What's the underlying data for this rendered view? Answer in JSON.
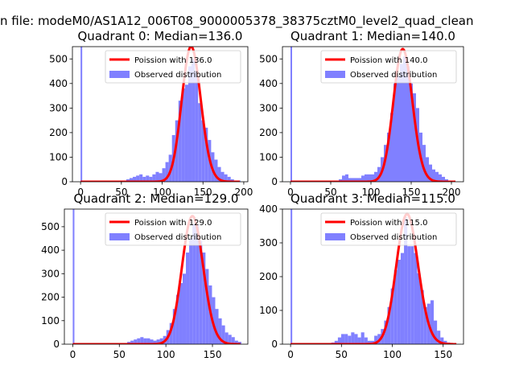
{
  "figure": {
    "suptitle": "n file: modeM0/AS1A12_006T08_9000005378_38375cztM0_level2_quad_clean"
  },
  "colors": {
    "fit_line": "#ff0000",
    "hist_fill": "#8080ff",
    "axes": "#000000"
  },
  "chart_data": [
    {
      "type": "bar",
      "title": "Quadrant 0: Median=136.0",
      "median": 136.0,
      "xlim": [
        -10,
        205
      ],
      "ylim": [
        0,
        550
      ],
      "xticks": [
        0,
        50,
        100,
        150,
        200
      ],
      "yticks": [
        0,
        100,
        200,
        300,
        400,
        500
      ],
      "series": [
        {
          "name": "Poission with 136.0",
          "kind": "poisson_fit",
          "mean": 136.0,
          "peak": 550,
          "x_range": [
            0,
            195
          ]
        },
        {
          "name": "Observed distribution",
          "kind": "histogram",
          "bin_width": 4,
          "bins": [
            [
              0,
              580
            ],
            [
              48,
              5
            ],
            [
              52,
              5
            ],
            [
              56,
              10
            ],
            [
              60,
              15
            ],
            [
              64,
              20
            ],
            [
              68,
              25
            ],
            [
              72,
              30
            ],
            [
              76,
              20
            ],
            [
              80,
              25
            ],
            [
              84,
              20
            ],
            [
              88,
              30
            ],
            [
              92,
              40
            ],
            [
              96,
              35
            ],
            [
              100,
              55
            ],
            [
              104,
              80
            ],
            [
              108,
              110
            ],
            [
              112,
              190
            ],
            [
              116,
              250
            ],
            [
              120,
              330
            ],
            [
              124,
              380
            ],
            [
              128,
              395
            ],
            [
              132,
              470
            ],
            [
              136,
              500
            ],
            [
              140,
              450
            ],
            [
              144,
              320
            ],
            [
              148,
              250
            ],
            [
              152,
              220
            ],
            [
              156,
              170
            ],
            [
              160,
              120
            ],
            [
              164,
              90
            ],
            [
              168,
              60
            ],
            [
              172,
              40
            ],
            [
              176,
              30
            ],
            [
              180,
              20
            ],
            [
              184,
              10
            ],
            [
              188,
              5
            ],
            [
              192,
              5
            ]
          ]
        }
      ],
      "legend": {
        "position": "upper right"
      }
    },
    {
      "type": "bar",
      "title": "Quadrant 1: Median=140.0",
      "median": 140.0,
      "xlim": [
        -10,
        215
      ],
      "ylim": [
        0,
        550
      ],
      "xticks": [
        0,
        50,
        100,
        150,
        200
      ],
      "yticks": [
        0,
        100,
        200,
        300,
        400,
        500
      ],
      "series": [
        {
          "name": "Poission with 140.0",
          "kind": "poisson_fit",
          "mean": 140.0,
          "peak": 540,
          "x_range": [
            0,
            205
          ]
        },
        {
          "name": "Observed distribution",
          "kind": "histogram",
          "bin_width": 4,
          "bins": [
            [
              0,
              580
            ],
            [
              56,
              5
            ],
            [
              60,
              10
            ],
            [
              64,
              25
            ],
            [
              68,
              30
            ],
            [
              72,
              15
            ],
            [
              76,
              15
            ],
            [
              80,
              15
            ],
            [
              84,
              15
            ],
            [
              88,
              25
            ],
            [
              92,
              30
            ],
            [
              96,
              30
            ],
            [
              100,
              30
            ],
            [
              104,
              40
            ],
            [
              108,
              60
            ],
            [
              112,
              100
            ],
            [
              116,
              150
            ],
            [
              120,
              200
            ],
            [
              124,
              280
            ],
            [
              128,
              400
            ],
            [
              132,
              430
            ],
            [
              136,
              480
            ],
            [
              140,
              510
            ],
            [
              144,
              470
            ],
            [
              148,
              400
            ],
            [
              152,
              360
            ],
            [
              156,
              300
            ],
            [
              160,
              200
            ],
            [
              164,
              150
            ],
            [
              168,
              100
            ],
            [
              172,
              70
            ],
            [
              176,
              50
            ],
            [
              180,
              40
            ],
            [
              184,
              30
            ],
            [
              188,
              20
            ],
            [
              192,
              10
            ],
            [
              196,
              5
            ]
          ]
        }
      ],
      "legend": {
        "position": "upper right"
      }
    },
    {
      "type": "bar",
      "title": "Quadrant 2: Median=129.0",
      "median": 129.0,
      "xlim": [
        -9,
        188
      ],
      "ylim": [
        0,
        575
      ],
      "xticks": [
        0,
        50,
        100,
        150
      ],
      "yticks": [
        0,
        100,
        200,
        300,
        400,
        500
      ],
      "series": [
        {
          "name": "Poission with 129.0",
          "kind": "poisson_fit",
          "mean": 129.0,
          "peak": 545,
          "x_range": [
            0,
            180
          ]
        },
        {
          "name": "Observed distribution",
          "kind": "histogram",
          "bin_width": 3.5,
          "bins": [
            [
              0,
              580
            ],
            [
              55,
              5
            ],
            [
              58.5,
              10
            ],
            [
              62,
              15
            ],
            [
              65.5,
              20
            ],
            [
              69,
              25
            ],
            [
              72.5,
              30
            ],
            [
              76,
              25
            ],
            [
              79.5,
              25
            ],
            [
              83,
              20
            ],
            [
              86.5,
              15
            ],
            [
              90,
              20
            ],
            [
              93.5,
              25
            ],
            [
              97,
              35
            ],
            [
              100.5,
              60
            ],
            [
              104,
              90
            ],
            [
              107.5,
              150
            ],
            [
              111,
              210
            ],
            [
              114.5,
              260
            ],
            [
              118,
              300
            ],
            [
              121.5,
              390
            ],
            [
              125,
              450
            ],
            [
              128.5,
              510
            ],
            [
              132,
              510
            ],
            [
              135.5,
              440
            ],
            [
              139,
              390
            ],
            [
              142.5,
              320
            ],
            [
              146,
              250
            ],
            [
              149.5,
              200
            ],
            [
              153,
              150
            ],
            [
              156.5,
              110
            ],
            [
              160,
              80
            ],
            [
              163.5,
              50
            ],
            [
              167,
              40
            ],
            [
              170.5,
              30
            ],
            [
              174,
              15
            ],
            [
              177.5,
              10
            ]
          ]
        }
      ],
      "legend": {
        "position": "upper right"
      }
    },
    {
      "type": "bar",
      "title": "Quadrant 3: Median=115.0",
      "median": 115.0,
      "xlim": [
        -8,
        170
      ],
      "ylim": [
        0,
        400
      ],
      "xticks": [
        0,
        50,
        100,
        150
      ],
      "yticks": [
        0,
        100,
        200,
        300,
        400
      ],
      "series": [
        {
          "name": "Poission with 115.0",
          "kind": "poisson_fit",
          "mean": 115.0,
          "peak": 385,
          "x_range": [
            0,
            163
          ]
        },
        {
          "name": "Observed distribution",
          "kind": "histogram",
          "bin_width": 3.25,
          "bins": [
            [
              0,
              420
            ],
            [
              40,
              5
            ],
            [
              43.25,
              10
            ],
            [
              46.5,
              20
            ],
            [
              49.75,
              30
            ],
            [
              53,
              30
            ],
            [
              56.25,
              25
            ],
            [
              59.5,
              35
            ],
            [
              62.75,
              30
            ],
            [
              66,
              20
            ],
            [
              69.25,
              35
            ],
            [
              72.5,
              20
            ],
            [
              75.75,
              10
            ],
            [
              79,
              10
            ],
            [
              82.25,
              25
            ],
            [
              85.5,
              30
            ],
            [
              88.75,
              45
            ],
            [
              92,
              70
            ],
            [
              95.25,
              110
            ],
            [
              98.5,
              165
            ],
            [
              101.75,
              220
            ],
            [
              105,
              250
            ],
            [
              108.25,
              270
            ],
            [
              111.5,
              375
            ],
            [
              114.75,
              290
            ],
            [
              118,
              290
            ],
            [
              121.25,
              270
            ],
            [
              124.5,
              210
            ],
            [
              127.75,
              160
            ],
            [
              131,
              110
            ],
            [
              134.25,
              120
            ],
            [
              137.5,
              130
            ],
            [
              140.75,
              70
            ],
            [
              144,
              40
            ],
            [
              147.25,
              20
            ],
            [
              150.5,
              10
            ],
            [
              153.75,
              5
            ]
          ]
        }
      ],
      "legend": {
        "position": "upper right"
      }
    }
  ]
}
